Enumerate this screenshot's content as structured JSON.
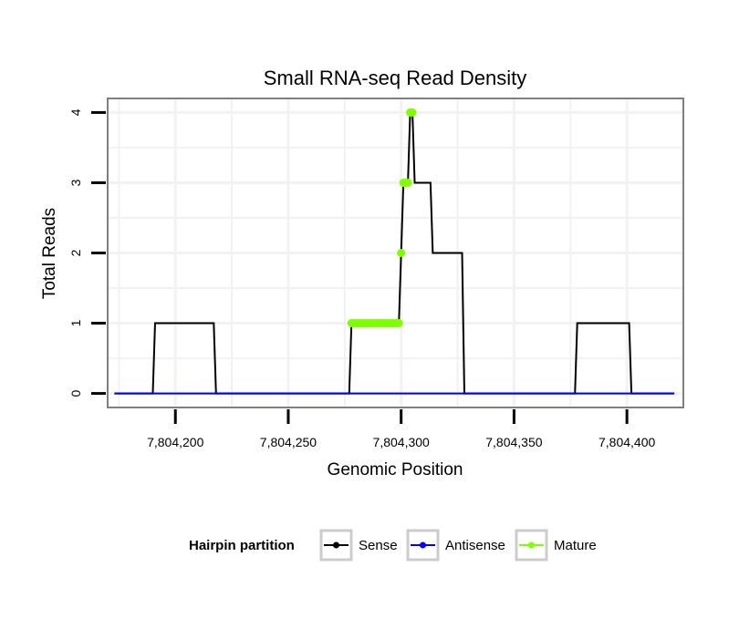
{
  "chart_data": {
    "type": "line",
    "title": "Small RNA-seq Read Density",
    "xlabel": "Genomic Position",
    "ylabel": "Total Reads",
    "xlim": [
      7804170,
      7804425
    ],
    "ylim": [
      -0.2,
      4.2
    ],
    "x_ticks": [
      7804200,
      7804250,
      7804300,
      7804350,
      7804400
    ],
    "x_tick_labels": [
      "7,804,200",
      "7,804,250",
      "7,804,300",
      "7,804,350",
      "7,804,400"
    ],
    "y_ticks": [
      0,
      1,
      2,
      3,
      4
    ],
    "y_tick_labels": [
      "0",
      "1",
      "2",
      "3",
      "4"
    ],
    "grid": true,
    "legend": {
      "title": "Hairpin partition",
      "position": "bottom",
      "entries": [
        {
          "name": "Sense",
          "color": "#000000"
        },
        {
          "name": "Antisense",
          "color": "#0000ff"
        },
        {
          "name": "Mature",
          "color": "#7fff00"
        }
      ]
    },
    "series": [
      {
        "name": "Sense",
        "color": "#000000",
        "x": [
          7804173,
          7804190,
          7804191,
          7804217,
          7804218,
          7804277,
          7804278,
          7804299,
          7804300,
          7804301,
          7804303,
          7804304,
          7804305,
          7804306,
          7804313,
          7804314,
          7804327,
          7804328,
          7804377,
          7804378,
          7804401,
          7804402,
          7804421
        ],
        "y": [
          0,
          0,
          1,
          1,
          0,
          0,
          1,
          1,
          2,
          3,
          3,
          4,
          4,
          3,
          3,
          2,
          2,
          0,
          0,
          1,
          1,
          0,
          0
        ]
      },
      {
        "name": "Antisense",
        "color": "#0000ff",
        "x": [
          7804173,
          7804421
        ],
        "y": [
          0,
          0
        ]
      },
      {
        "name": "Mature",
        "color": "#7fff00",
        "x": [
          7804278,
          7804279,
          7804280,
          7804281,
          7804282,
          7804283,
          7804284,
          7804285,
          7804286,
          7804287,
          7804288,
          7804289,
          7804290,
          7804291,
          7804292,
          7804293,
          7804294,
          7804295,
          7804296,
          7804297,
          7804298,
          7804299,
          7804300,
          7804301,
          7804302,
          7804303,
          7804304,
          7804305
        ],
        "y": [
          1,
          1,
          1,
          1,
          1,
          1,
          1,
          1,
          1,
          1,
          1,
          1,
          1,
          1,
          1,
          1,
          1,
          1,
          1,
          1,
          1,
          1,
          2,
          3,
          3,
          3,
          4,
          4
        ]
      }
    ]
  }
}
